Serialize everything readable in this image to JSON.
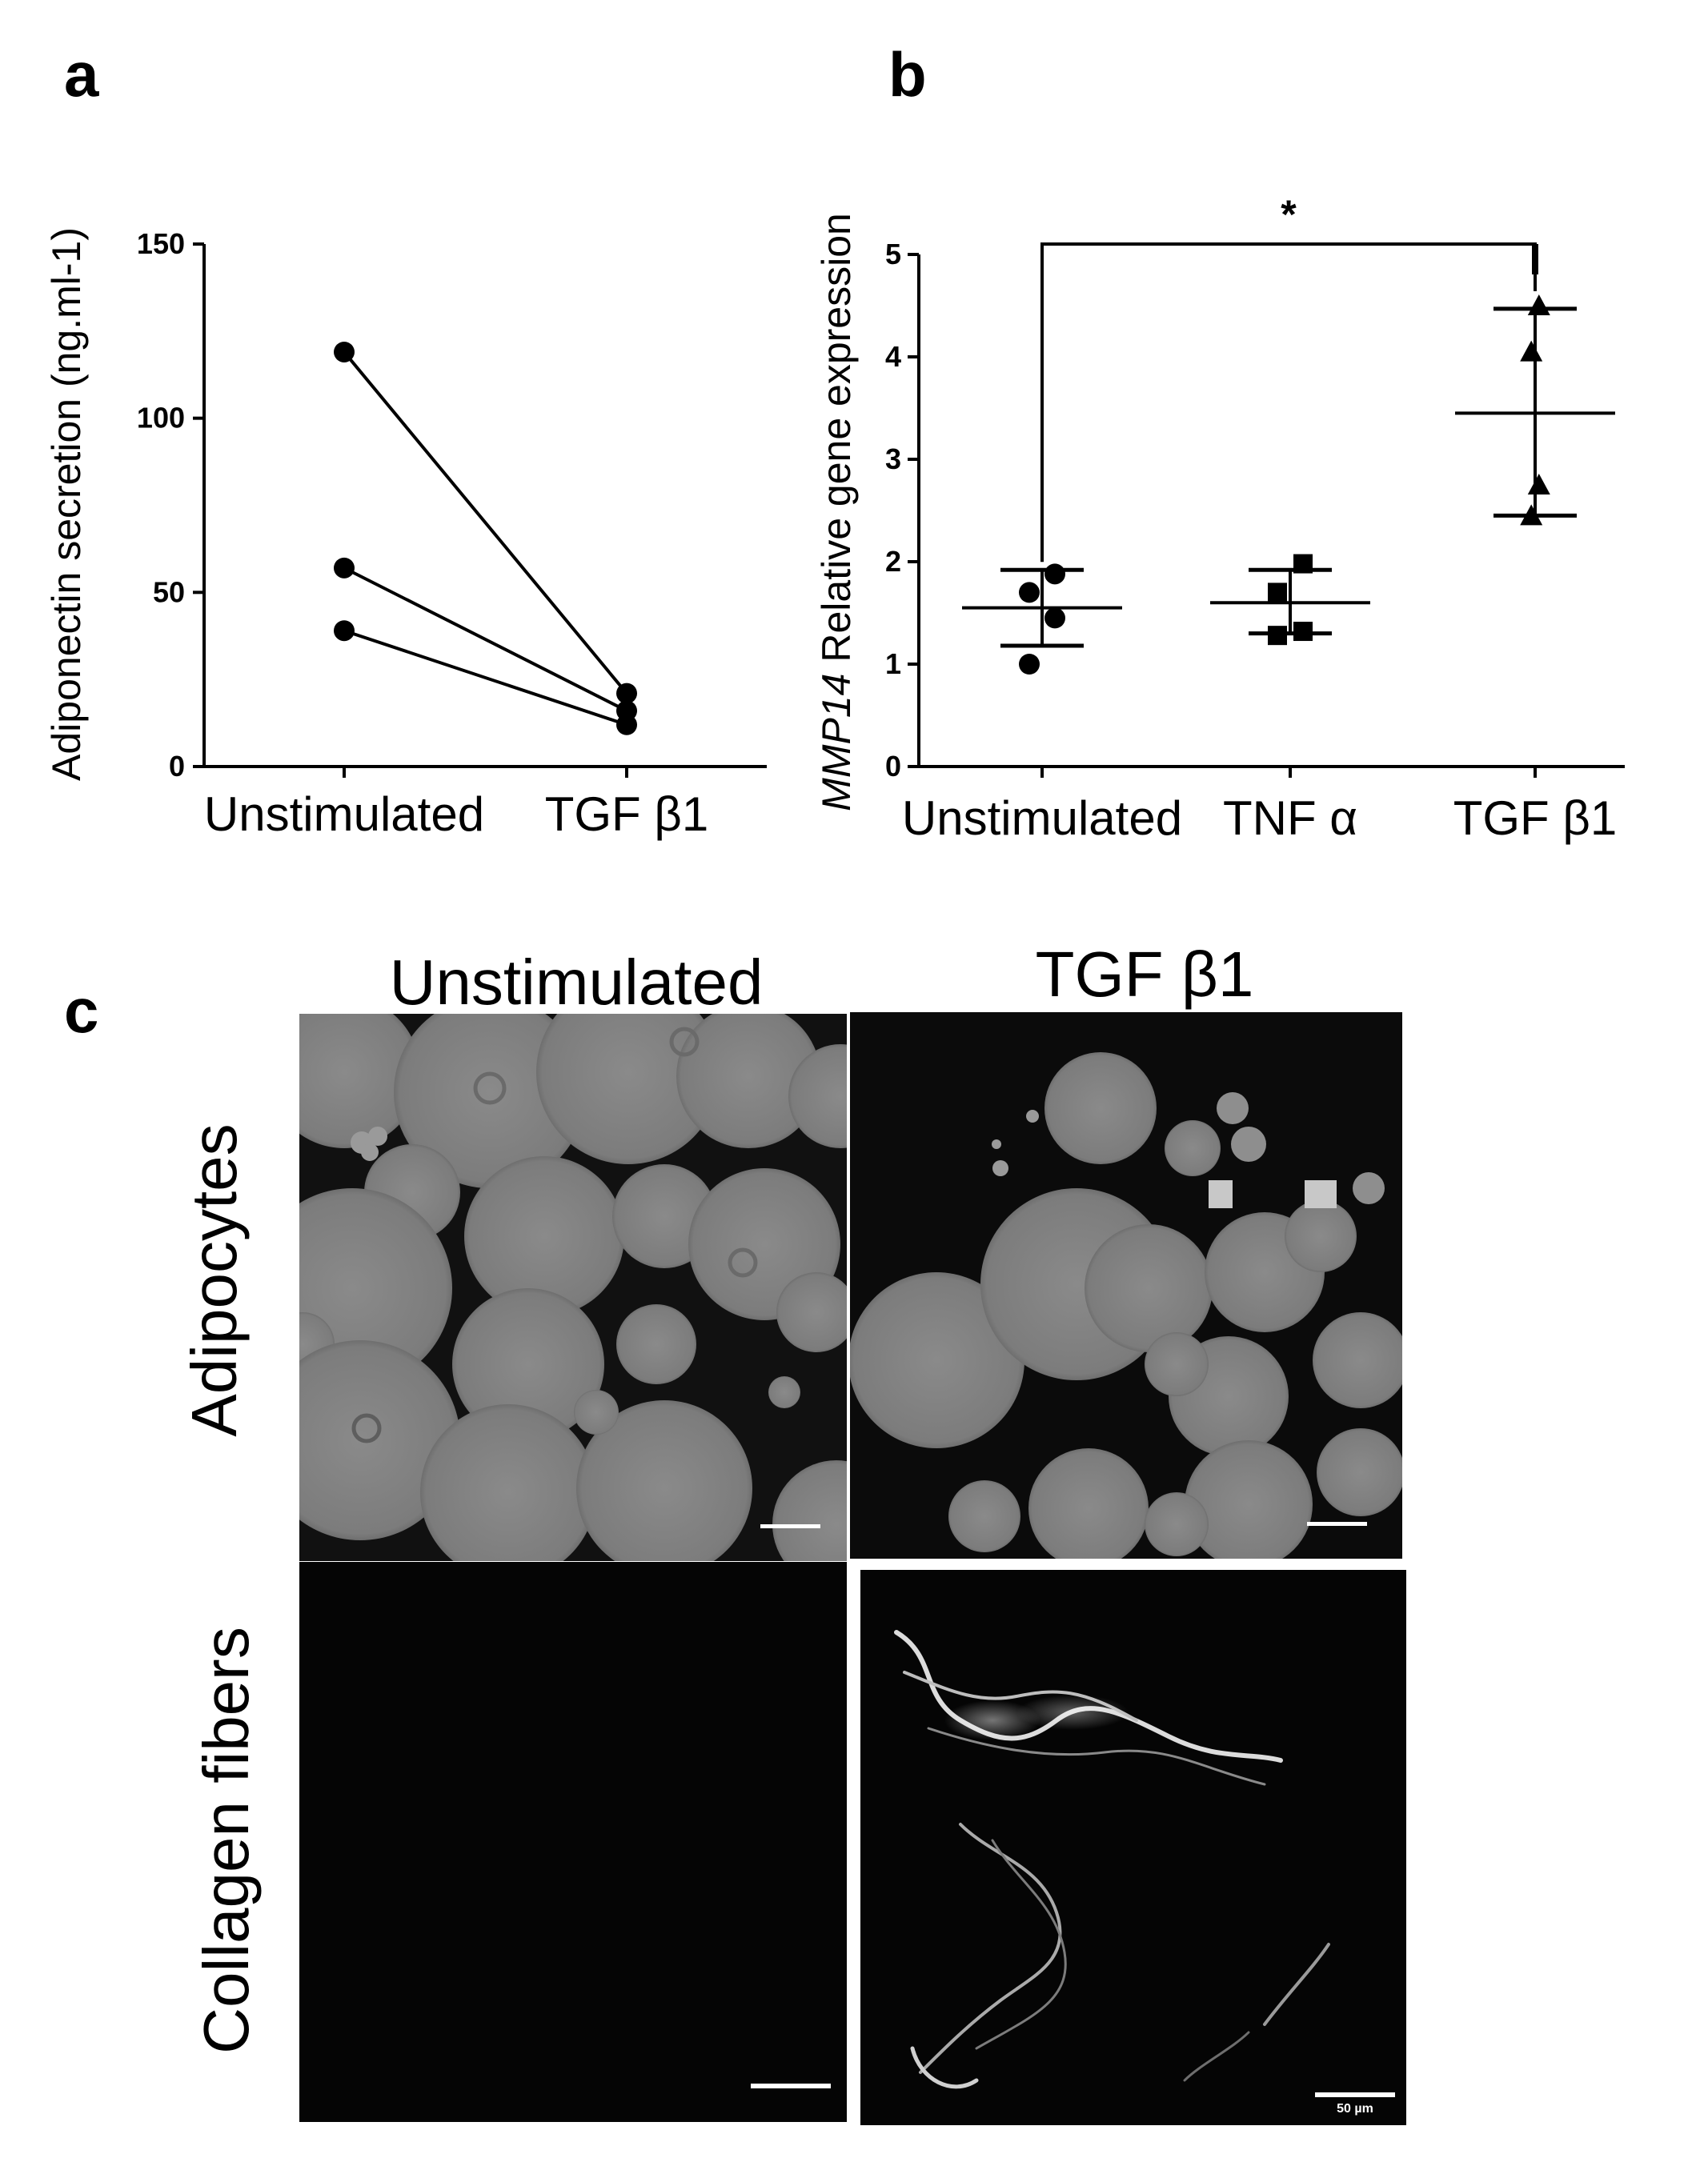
{
  "panels": {
    "a": {
      "letter": "a"
    },
    "b": {
      "letter": "b"
    },
    "c": {
      "letter": "c"
    }
  },
  "chart_data": [
    {
      "type": "scatter",
      "panel": "a",
      "ylabel": "Adiponectin secretion (ng.ml-1)",
      "xlabel": "",
      "categories": [
        "Unstimulated",
        "TGF β1"
      ],
      "ylim": [
        0,
        150
      ],
      "yticks": [
        0,
        50,
        100,
        150
      ],
      "paired": true,
      "pairs": [
        {
          "values": [
            119,
            21
          ]
        },
        {
          "values": [
            57,
            16
          ]
        },
        {
          "values": [
            39,
            12
          ]
        }
      ]
    },
    {
      "type": "scatter",
      "panel": "b",
      "ylabel_italic": "MMP14",
      "ylabel": "Relative gene expression",
      "xlabel": "",
      "categories": [
        "Unstimulated",
        "TNF α",
        "TGF β1"
      ],
      "ylim": [
        0,
        5
      ],
      "yticks": [
        0,
        1,
        2,
        3,
        4,
        5
      ],
      "series": [
        {
          "category": "Unstimulated",
          "marker": "circle",
          "points": [
            1.0,
            1.45,
            1.7,
            1.88
          ],
          "mean": 1.55,
          "sd_upper": 1.92,
          "sd_lower": 1.18
        },
        {
          "category": "TNF α",
          "marker": "square",
          "points": [
            1.28,
            1.32,
            1.7,
            1.98
          ],
          "mean": 1.6,
          "sd_upper": 1.92,
          "sd_lower": 1.3
        },
        {
          "category": "TGF β1",
          "marker": "triangle",
          "points": [
            2.45,
            2.75,
            4.05,
            4.5
          ],
          "mean": 3.45,
          "sd_upper": 4.47,
          "sd_lower": 2.45
        }
      ],
      "significance": {
        "from": "Unstimulated",
        "to": "TGF β1",
        "label": "*"
      }
    }
  ],
  "micrographs": {
    "columns": [
      "Unstimulated",
      "TGF β1"
    ],
    "rows": [
      "Adipocytes",
      "Collagen fibers"
    ],
    "scale_bar_label": "50 µm"
  }
}
